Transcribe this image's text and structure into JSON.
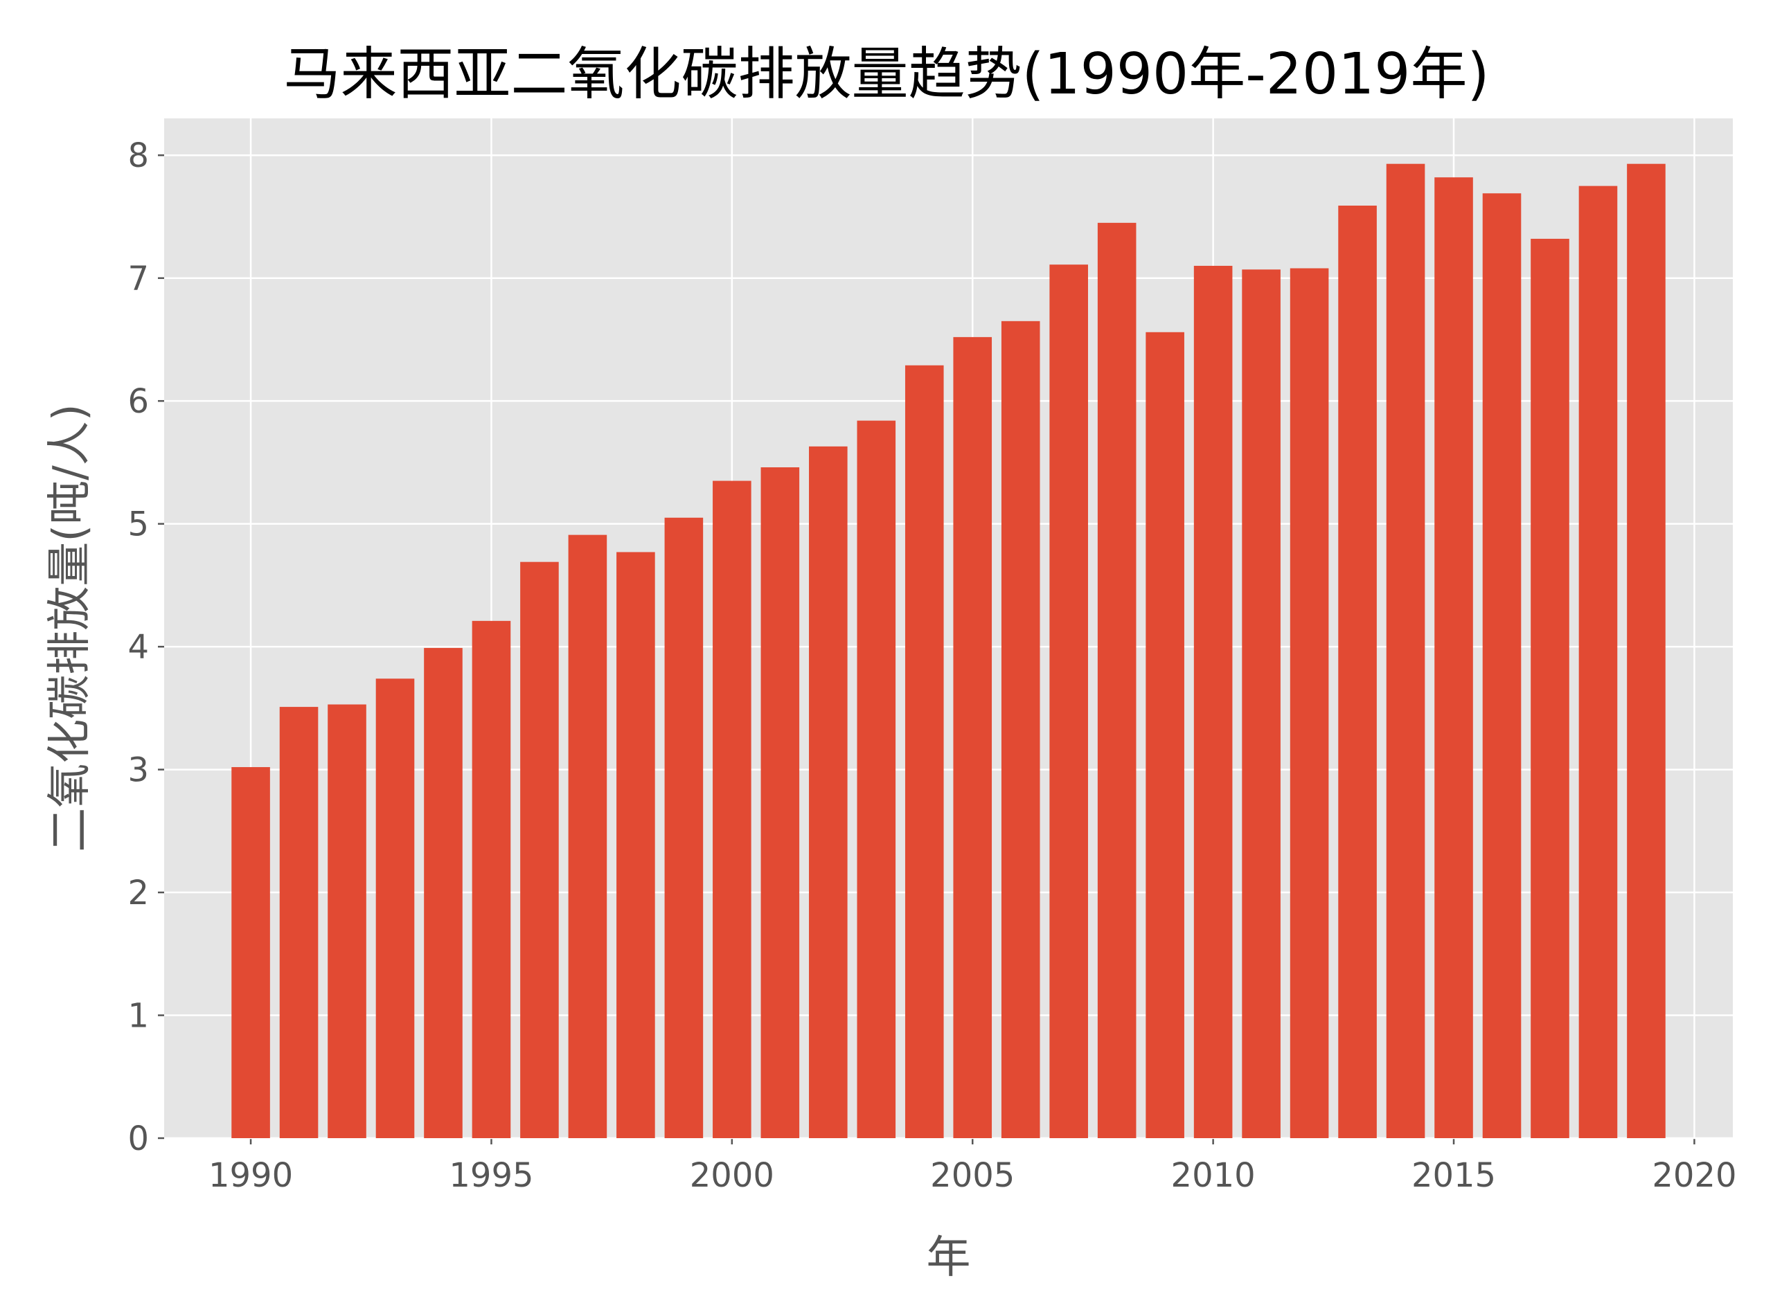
{
  "chart_data": {
    "type": "bar",
    "title": "马来西亚二氧化碳排放量趋势(1990年-2019年)",
    "xlabel": "年",
    "ylabel": "二氧化碳排放量(吨/人)",
    "x": [
      1990,
      1991,
      1992,
      1993,
      1994,
      1995,
      1996,
      1997,
      1998,
      1999,
      2000,
      2001,
      2002,
      2003,
      2004,
      2005,
      2006,
      2007,
      2008,
      2009,
      2010,
      2011,
      2012,
      2013,
      2014,
      2015,
      2016,
      2017,
      2018,
      2019
    ],
    "values": [
      3.02,
      3.51,
      3.53,
      3.74,
      3.99,
      4.21,
      4.69,
      4.91,
      4.77,
      5.05,
      5.35,
      5.46,
      5.63,
      5.84,
      6.29,
      6.52,
      6.65,
      7.11,
      7.45,
      6.56,
      7.1,
      7.07,
      7.08,
      7.59,
      7.93,
      7.82,
      7.69,
      7.32,
      7.75,
      7.93
    ],
    "xticks": [
      1990,
      1995,
      2000,
      2005,
      2010,
      2015,
      2020
    ],
    "yticks": [
      0,
      1,
      2,
      3,
      4,
      5,
      6,
      7,
      8
    ],
    "xlim": [
      1988.2,
      2020.8
    ],
    "ylim": [
      0,
      8.3
    ],
    "grid": true,
    "colors": {
      "bar": "#E24A33",
      "background": "#E5E5E5",
      "grid": "#FFFFFF"
    }
  }
}
